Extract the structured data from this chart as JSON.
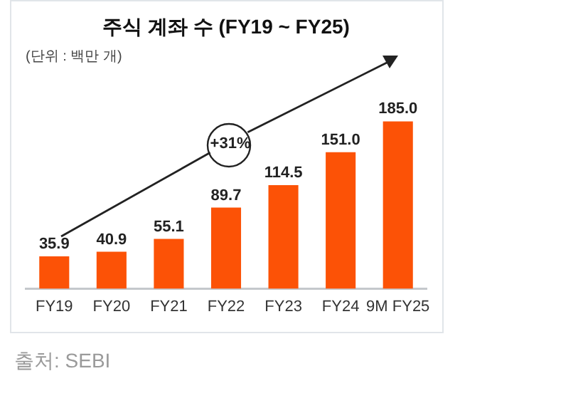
{
  "chart_data": {
    "type": "bar",
    "title": "주식 계좌 수 (FY19 ~ FY25)",
    "subtitle": "(단위 : 백만 개)",
    "categories": [
      "FY19",
      "FY20",
      "FY21",
      "FY22",
      "FY23",
      "FY24",
      "9M FY25"
    ],
    "values": [
      35.9,
      40.9,
      55.1,
      89.7,
      114.5,
      151.0,
      185.0
    ],
    "color": "#fc5206",
    "value_labels": [
      "35.9",
      "40.9",
      "55.1",
      "89.7",
      "114.5",
      "151.0",
      "185.0"
    ],
    "grid": false,
    "legend": false,
    "annotations": [
      "+31%",
      "출처: SEBI"
    ]
  }
}
